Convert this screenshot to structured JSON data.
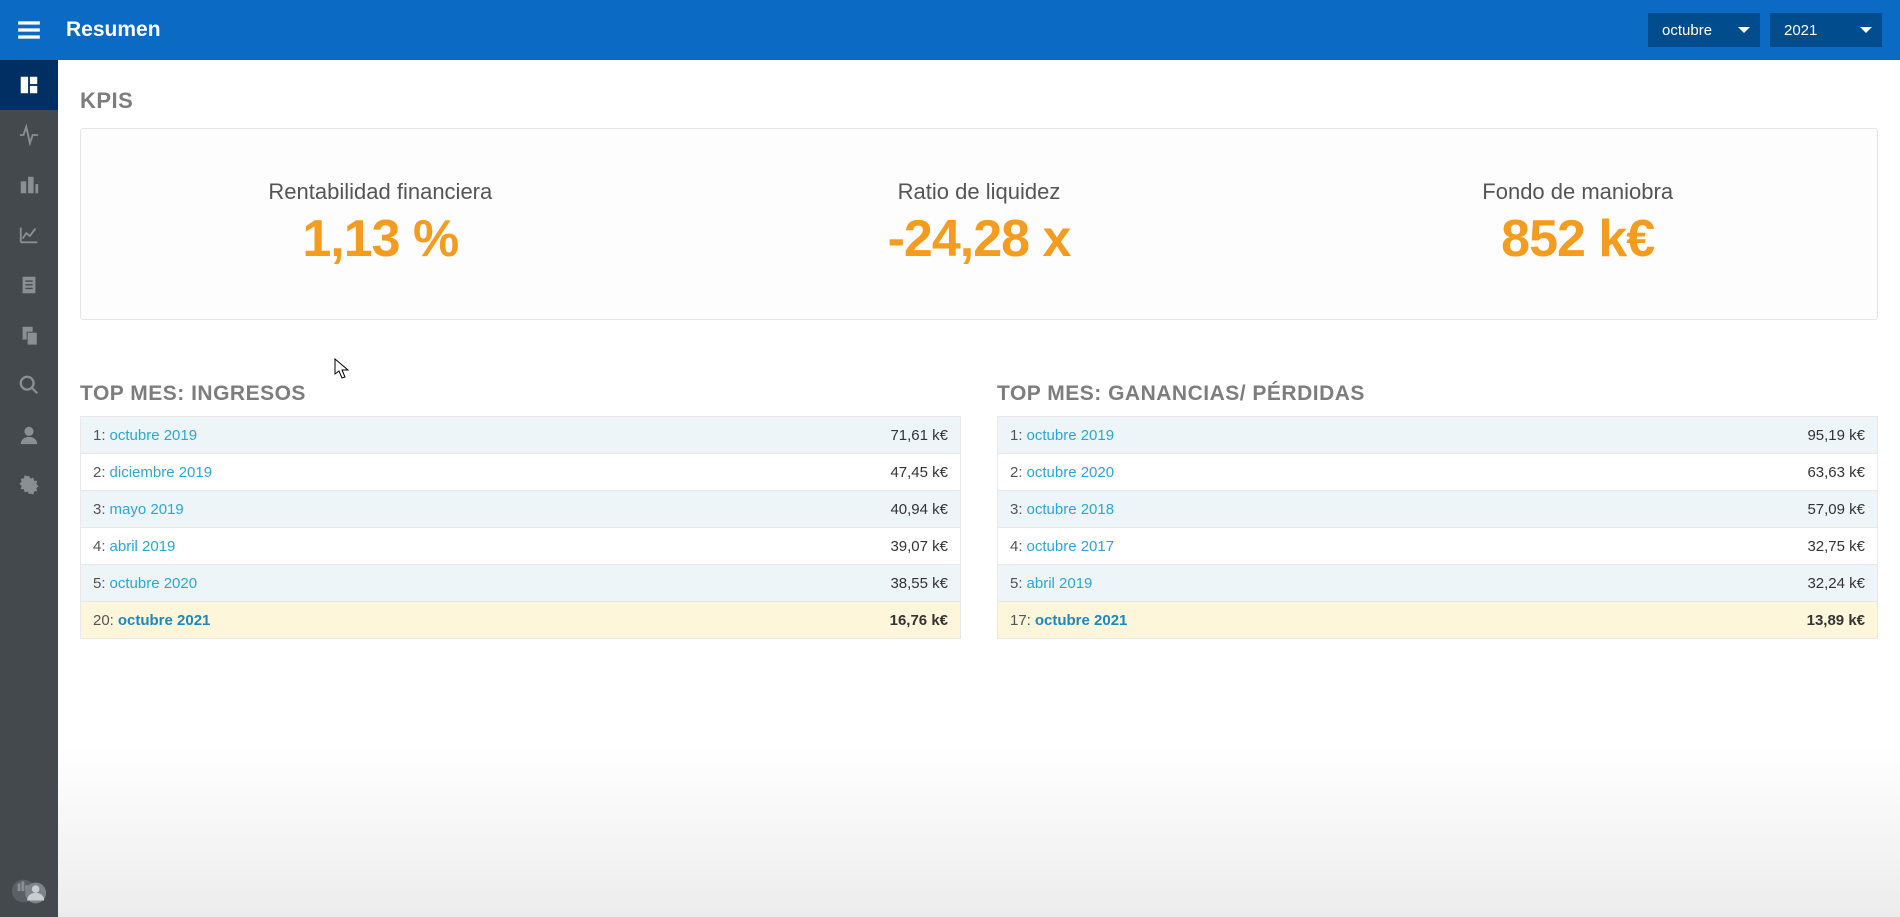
{
  "colors": {
    "topbar_bg": "#0b6bc4",
    "dropdown_bg": "#014c8d",
    "sidebar_bg": "#44494d",
    "sidebar_active_bg": "#012f64",
    "sidebar_icon": "#8a8f93",
    "kpi_value": "#f39c1f",
    "section_heading": "#7d7d7d",
    "link": "#2aa7d8",
    "row_alt_bg": "#edf5f8",
    "row_highlight_bg": "#fdf6da",
    "card_border": "#e6e6e6"
  },
  "header": {
    "title": "Resumen",
    "month_selected": "octubre",
    "year_selected": "2021"
  },
  "kpis": {
    "heading": "KPIS",
    "items": [
      {
        "label": "Rentabilidad financiera",
        "value": "1,13 %"
      },
      {
        "label": "Ratio de liquidez",
        "value": "-24,28 x"
      },
      {
        "label": "Fondo de maniobra",
        "value": "852 k€"
      }
    ]
  },
  "tables": {
    "ingresos": {
      "heading": "TOP MES: INGRESOS",
      "rows": [
        {
          "rank": "1",
          "label": "octubre 2019",
          "value": "71,61 k€",
          "alt": true,
          "hl": false
        },
        {
          "rank": "2",
          "label": "diciembre 2019",
          "value": "47,45 k€",
          "alt": false,
          "hl": false
        },
        {
          "rank": "3",
          "label": "mayo 2019",
          "value": "40,94 k€",
          "alt": true,
          "hl": false
        },
        {
          "rank": "4",
          "label": "abril 2019",
          "value": "39,07 k€",
          "alt": false,
          "hl": false
        },
        {
          "rank": "5",
          "label": "octubre 2020",
          "value": "38,55 k€",
          "alt": true,
          "hl": false
        },
        {
          "rank": "20",
          "label": "octubre 2021",
          "value": "16,76 k€",
          "alt": false,
          "hl": true
        }
      ]
    },
    "ganancias": {
      "heading": "TOP MES: GANANCIAS/ PÉRDIDAS",
      "rows": [
        {
          "rank": "1",
          "label": "octubre 2019",
          "value": "95,19 k€",
          "alt": true,
          "hl": false
        },
        {
          "rank": "2",
          "label": "octubre 2020",
          "value": "63,63 k€",
          "alt": false,
          "hl": false
        },
        {
          "rank": "3",
          "label": "octubre 2018",
          "value": "57,09 k€",
          "alt": true,
          "hl": false
        },
        {
          "rank": "4",
          "label": "octubre 2017",
          "value": "32,75 k€",
          "alt": false,
          "hl": false
        },
        {
          "rank": "5",
          "label": "abril 2019",
          "value": "32,24 k€",
          "alt": true,
          "hl": false
        },
        {
          "rank": "17",
          "label": "octubre 2021",
          "value": "13,89 k€",
          "alt": false,
          "hl": true
        }
      ]
    }
  },
  "sidebar": {
    "items": [
      {
        "name": "dashboard",
        "active": true
      },
      {
        "name": "activity",
        "active": false
      },
      {
        "name": "buildings",
        "active": false
      },
      {
        "name": "chart",
        "active": false
      },
      {
        "name": "document",
        "active": false
      },
      {
        "name": "clipboard",
        "active": false
      },
      {
        "name": "search",
        "active": false
      },
      {
        "name": "user",
        "active": false
      },
      {
        "name": "settings",
        "active": false
      }
    ]
  }
}
